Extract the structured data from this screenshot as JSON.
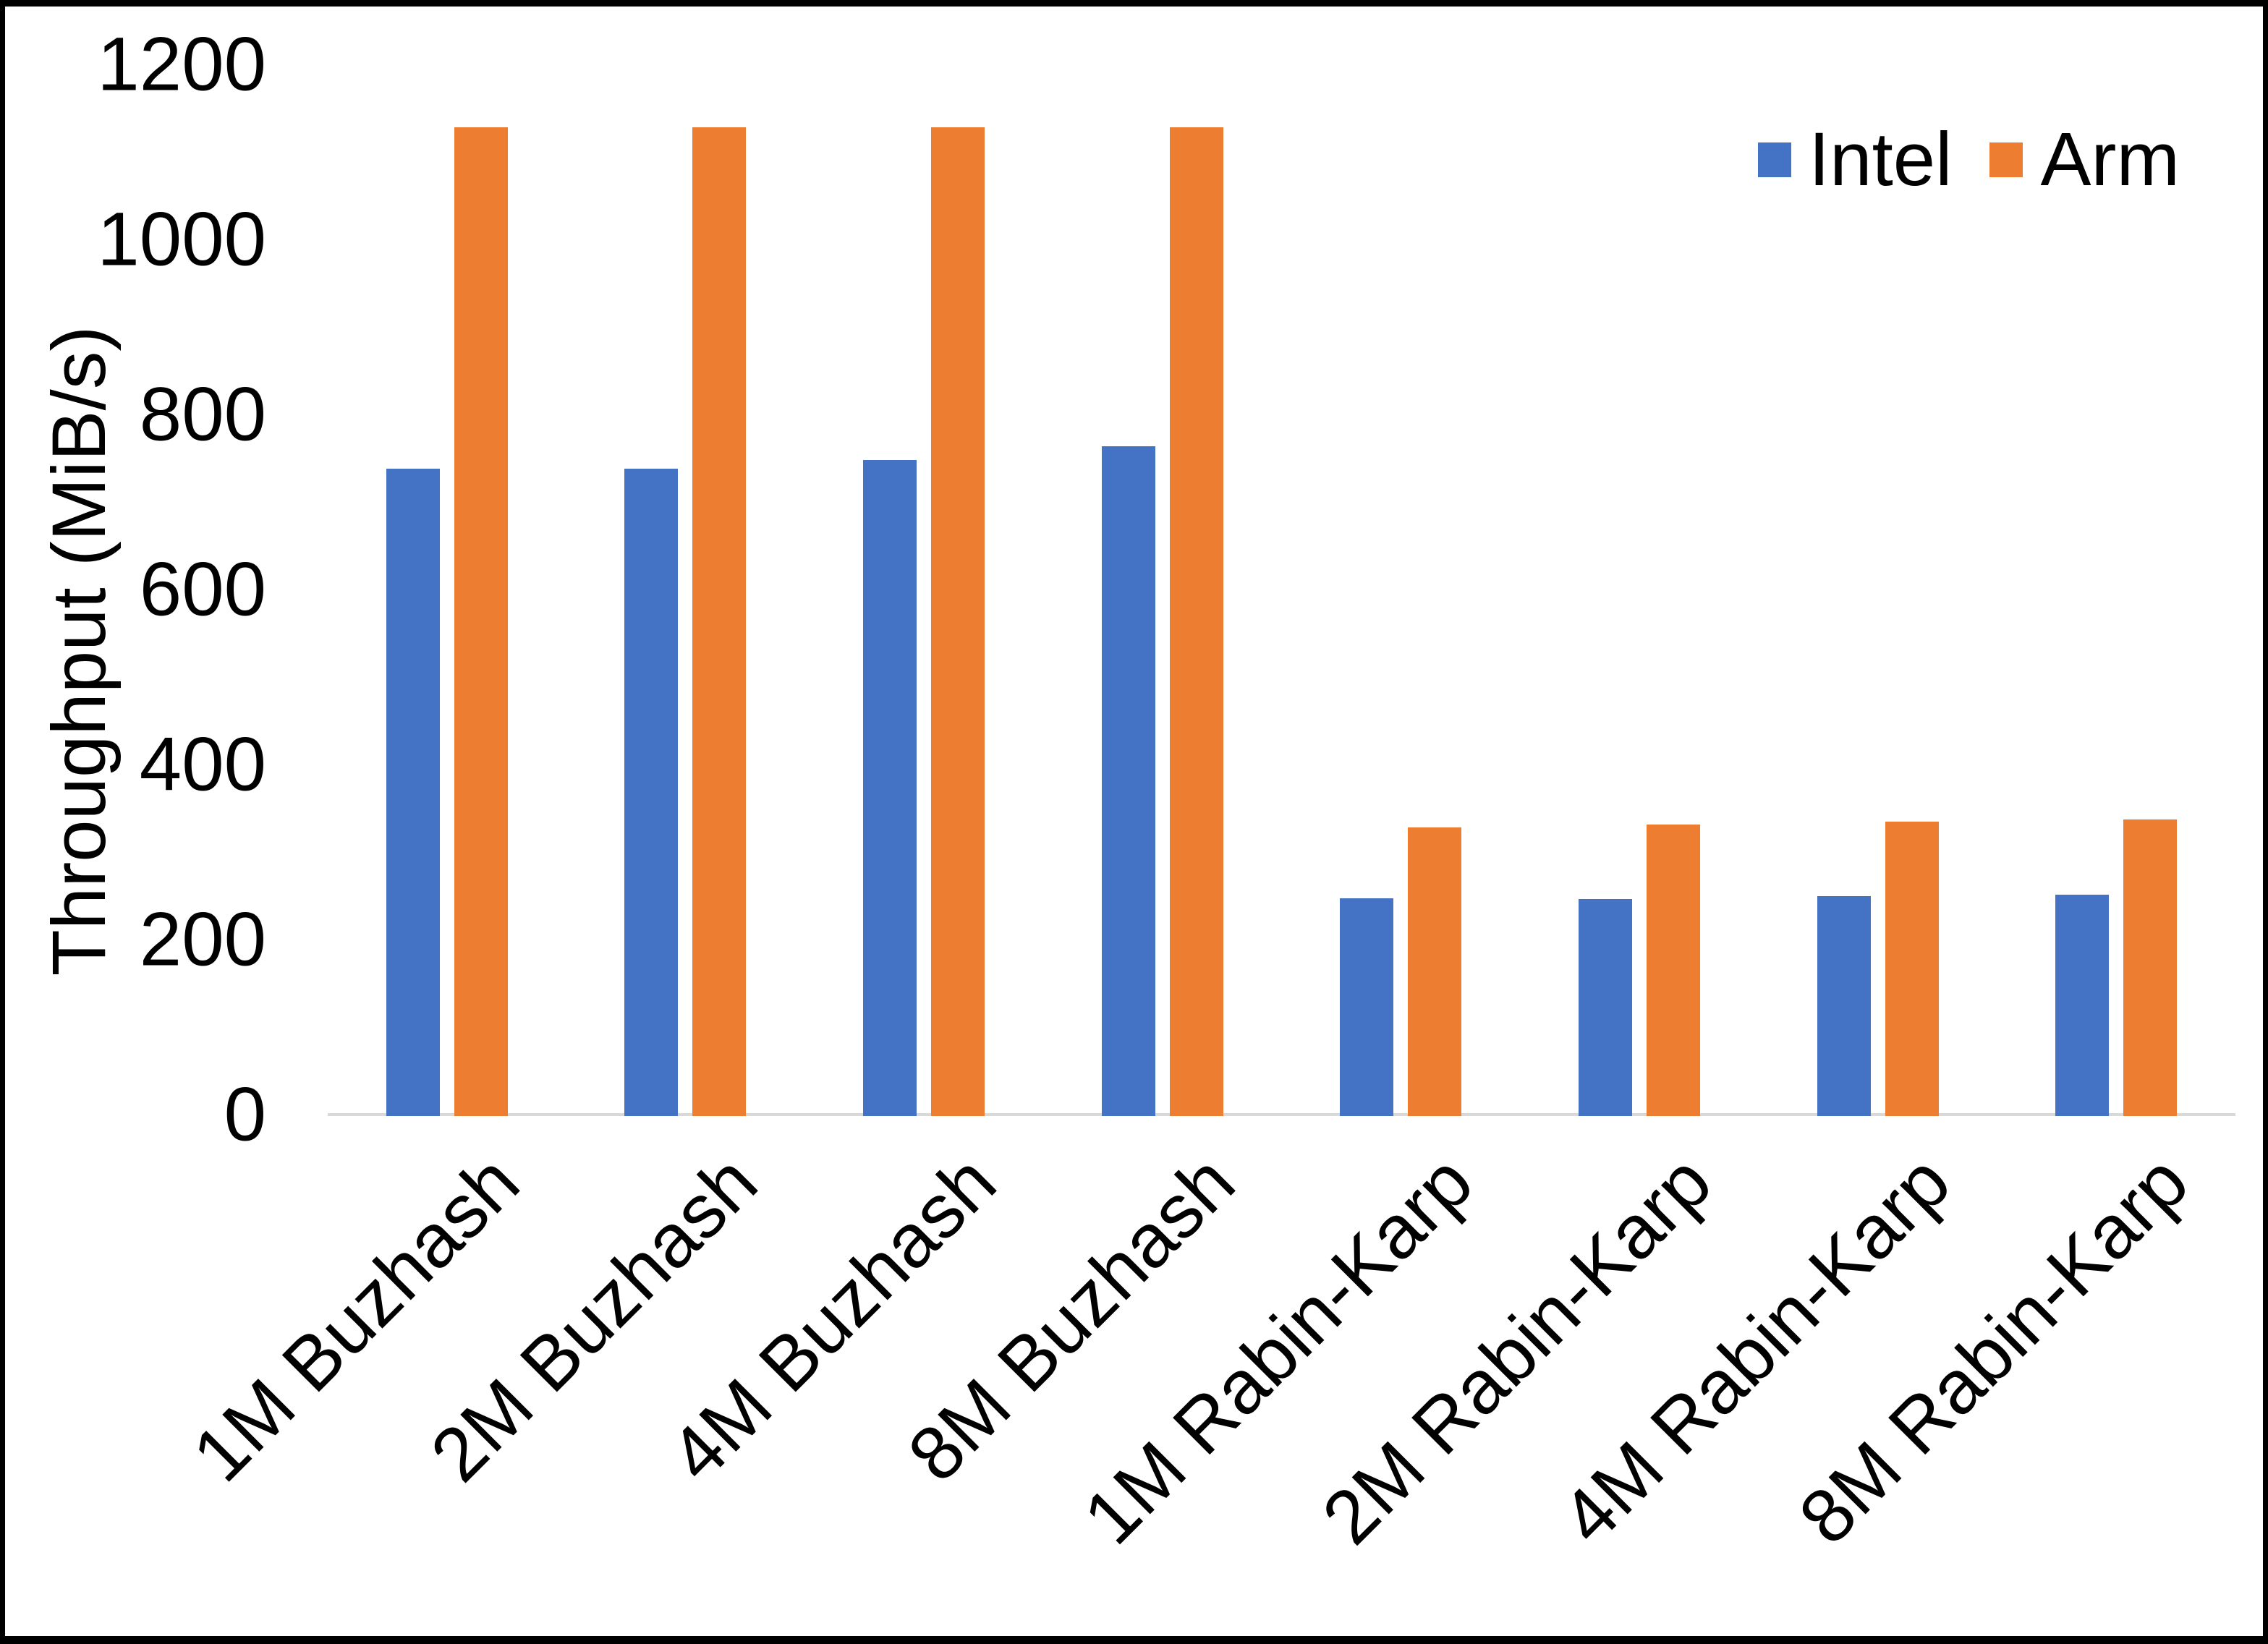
{
  "chart_data": {
    "type": "bar",
    "title": "",
    "ylabel": "Throughput (MiB/s)",
    "xlabel": "",
    "ylim": [
      0,
      1200
    ],
    "yticks": [
      0,
      200,
      400,
      600,
      800,
      1000,
      1200
    ],
    "grid": false,
    "legend_position": "top-right",
    "categories": [
      "1M Buzhash",
      "2M Buzhash",
      "4M Buzhash",
      "8M Buzhash",
      "1M Rabin-Karp",
      "2M Rabin-Karp",
      "4M Rabin-Karp",
      "8M Rabin-Karp"
    ],
    "series": [
      {
        "name": "Intel",
        "color": "#4472C4",
        "values": [
          740,
          740,
          750,
          765,
          249,
          248,
          251,
          253
        ]
      },
      {
        "name": "Arm",
        "color": "#ED7D31",
        "values": [
          1130,
          1130,
          1130,
          1130,
          330,
          333,
          336,
          339
        ]
      }
    ],
    "axis_line_color": "#D9D9D9",
    "text_color": "#000000"
  }
}
